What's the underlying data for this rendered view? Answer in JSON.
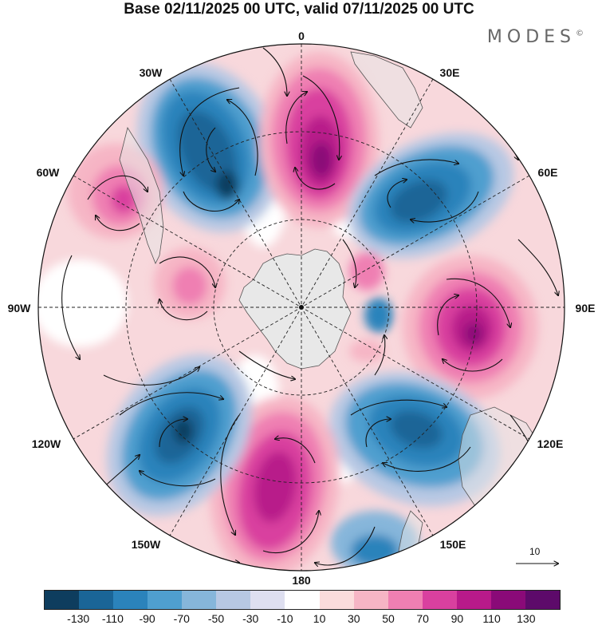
{
  "title": "Base 02/11/2025 00 UTC, valid 07/11/2025 00 UTC",
  "brand": "MODES",
  "brand_mark": "©",
  "longitude_labels": {
    "deg0": "0",
    "deg30e": "30E",
    "deg60e": "60E",
    "deg90e": "90E",
    "deg120e": "120E",
    "deg150e": "150E",
    "deg180": "180",
    "deg150w": "150W",
    "deg120w": "120W",
    "deg90w": "90W",
    "deg60w": "60W",
    "deg30w": "30W"
  },
  "vector_scale": {
    "label": "10",
    "value": 10
  },
  "colorbar": {
    "colors": [
      "#0e3d5e",
      "#1a6597",
      "#2b83bb",
      "#4f9fcf",
      "#86b6da",
      "#b7c8e3",
      "#dedff0",
      "#ffffff",
      "#fbdcdc",
      "#f6b5c5",
      "#ef7fb2",
      "#d9409f",
      "#b81a8a",
      "#8a0a78",
      "#5d0a6a"
    ],
    "ticks": [
      "-130",
      "-110",
      "-90",
      "-70",
      "-50",
      "-30",
      "-10",
      "10",
      "30",
      "50",
      "70",
      "90",
      "110",
      "130"
    ]
  },
  "anomaly_centers": [
    {
      "name": "lobe-30w",
      "value": -130
    },
    {
      "name": "lobe-15e",
      "value": 130
    },
    {
      "name": "lobe-60e",
      "value": -110
    },
    {
      "name": "lobe-90e",
      "value": 120
    },
    {
      "name": "lobe-130e",
      "value": -100
    },
    {
      "name": "lobe-165w",
      "value": 120
    },
    {
      "name": "lobe-125w",
      "value": -120
    },
    {
      "name": "lobe-60w",
      "value": 80
    },
    {
      "name": "lobe-80w",
      "value": 60
    }
  ]
}
